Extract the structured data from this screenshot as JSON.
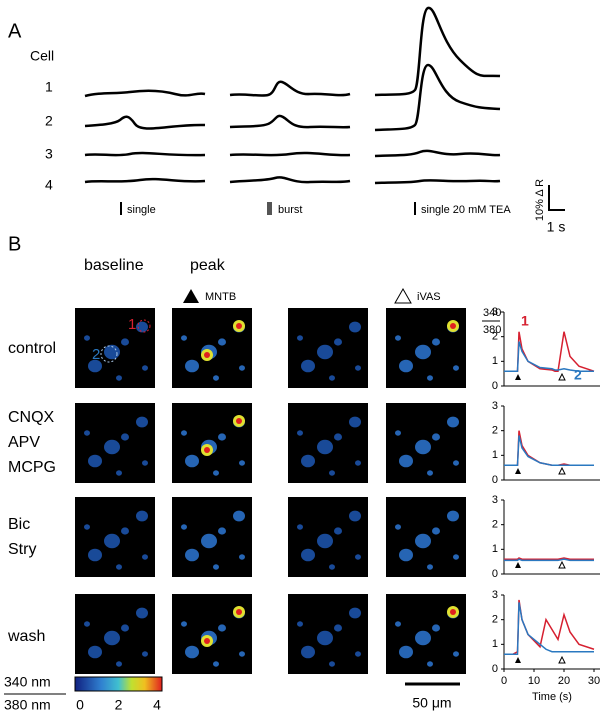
{
  "panel_a": {
    "label": "A",
    "header": "Cell",
    "cells": [
      "1",
      "2",
      "3",
      "4"
    ],
    "stimuli": [
      "single",
      "burst",
      "single 20 mM TEA"
    ],
    "scale_y": "10% Δ R",
    "scale_x": "1 s"
  },
  "panel_b": {
    "label": "B",
    "columns": [
      "baseline",
      "peak"
    ],
    "stim_labels": [
      "MNTB",
      "iVAS"
    ],
    "rows": [
      [
        "control"
      ],
      [
        "CNQX",
        "APV",
        "MCPG"
      ],
      [
        "Bic",
        "Stry"
      ],
      [
        "wash"
      ]
    ],
    "image_markers": [
      "1",
      "2"
    ],
    "colorbar": {
      "unit_top": "340 nm",
      "unit_bottom": "380 nm",
      "ticks": [
        0,
        2,
        4
      ]
    },
    "scale_bar": "50 μm"
  },
  "chart_data": [
    {
      "type": "line",
      "y_label_top": "340",
      "y_label_bottom": "380",
      "x": [
        0,
        3,
        4.5,
        5,
        6,
        8,
        12,
        16,
        17,
        18,
        20,
        22,
        25,
        30
      ],
      "series": [
        {
          "name": "1",
          "color": "#d62030",
          "values": [
            0.6,
            0.6,
            0.6,
            2.2,
            1.5,
            1.0,
            0.7,
            0.65,
            0.6,
            0.6,
            2.2,
            1.2,
            0.8,
            0.6
          ]
        },
        {
          "name": "2",
          "color": "#2a78c0",
          "values": [
            0.6,
            0.6,
            0.6,
            1.8,
            1.4,
            1.0,
            0.75,
            0.7,
            0.65,
            0.65,
            0.7,
            0.65,
            0.6,
            0.6
          ]
        }
      ],
      "xlim": [
        0,
        32
      ],
      "ylim": [
        0,
        3
      ],
      "yticks": [
        0,
        1,
        2,
        3
      ]
    },
    {
      "type": "line",
      "x": [
        0,
        3,
        4.5,
        5,
        6,
        8,
        12,
        16,
        17,
        18,
        20,
        22,
        25,
        30
      ],
      "series": [
        {
          "color": "#d62030",
          "values": [
            0.6,
            0.6,
            0.6,
            2.0,
            1.4,
            1.0,
            0.7,
            0.6,
            0.6,
            0.6,
            0.65,
            0.6,
            0.6,
            0.6
          ]
        },
        {
          "color": "#2a78c0",
          "values": [
            0.6,
            0.6,
            0.6,
            1.8,
            1.3,
            0.95,
            0.7,
            0.6,
            0.6,
            0.6,
            0.6,
            0.6,
            0.6,
            0.6
          ]
        }
      ],
      "xlim": [
        0,
        32
      ],
      "ylim": [
        0,
        3
      ],
      "yticks": [
        0,
        1,
        2,
        3
      ]
    },
    {
      "type": "line",
      "x": [
        0,
        3,
        4.5,
        5,
        6,
        8,
        12,
        16,
        17,
        18,
        20,
        22,
        25,
        30
      ],
      "series": [
        {
          "color": "#d62030",
          "values": [
            0.6,
            0.6,
            0.6,
            0.65,
            0.6,
            0.6,
            0.6,
            0.6,
            0.6,
            0.6,
            0.65,
            0.6,
            0.6,
            0.6
          ]
        },
        {
          "color": "#2a78c0",
          "values": [
            0.55,
            0.55,
            0.55,
            0.6,
            0.55,
            0.55,
            0.55,
            0.55,
            0.55,
            0.55,
            0.6,
            0.55,
            0.55,
            0.55
          ]
        }
      ],
      "xlim": [
        0,
        32
      ],
      "ylim": [
        0,
        3
      ],
      "yticks": [
        0,
        1,
        2,
        3
      ]
    },
    {
      "type": "line",
      "x_label": "Time (s)",
      "x": [
        0,
        3,
        4.5,
        5,
        6,
        8,
        12,
        14,
        16,
        18,
        20,
        22,
        25,
        30
      ],
      "series": [
        {
          "color": "#d62030",
          "values": [
            0.6,
            0.6,
            0.7,
            2.8,
            2.0,
            1.4,
            0.9,
            2.0,
            1.6,
            1.2,
            2.2,
            1.5,
            1.0,
            0.8
          ]
        },
        {
          "color": "#2a78c0",
          "values": [
            0.6,
            0.6,
            0.6,
            2.7,
            2.0,
            1.4,
            1.0,
            0.8,
            0.7,
            0.7,
            0.7,
            0.7,
            0.7,
            0.7
          ]
        }
      ],
      "xlim": [
        0,
        32
      ],
      "ylim": [
        0,
        3
      ],
      "yticks": [
        0,
        1,
        2,
        3
      ],
      "xticks": [
        0,
        10,
        20,
        30
      ]
    }
  ]
}
